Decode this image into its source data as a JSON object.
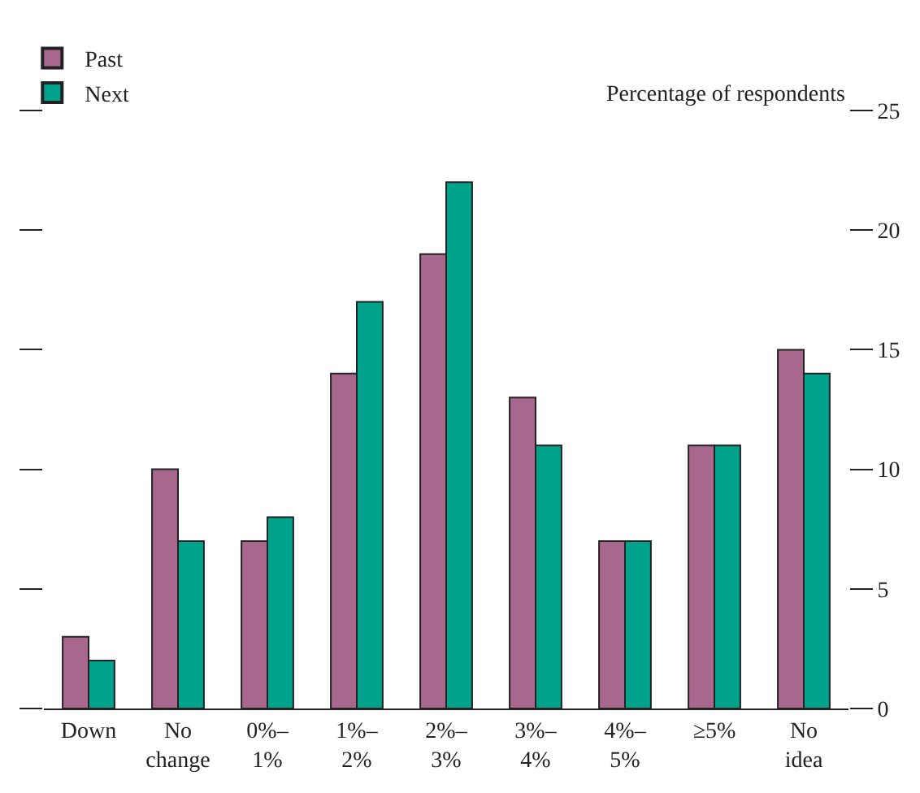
{
  "chart_data": {
    "type": "bar",
    "ylabel": "Percentage of respondents",
    "categories": [
      "Down",
      "No change",
      "0%–1%",
      "1%–2%",
      "2%–3%",
      "3%–4%",
      "4%–5%",
      "≥5%",
      "No idea"
    ],
    "series": [
      {
        "name": "Past",
        "color": "#a8688e",
        "values": [
          3,
          10,
          7,
          14,
          19,
          13,
          7,
          11,
          15
        ]
      },
      {
        "name": "Next",
        "color": "#00a28c",
        "values": [
          2,
          7,
          8,
          17,
          22,
          11,
          7,
          11,
          14
        ]
      }
    ],
    "ylim": [
      0,
      25
    ],
    "yticks": [
      0,
      5,
      10,
      15,
      20,
      25
    ],
    "grid": false,
    "legend": "top left"
  }
}
